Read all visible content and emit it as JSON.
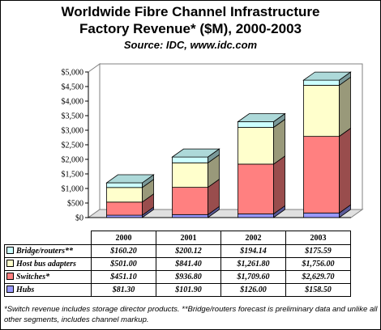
{
  "title_line1": "Worldwide Fibre Channel Infrastructure",
  "title_line2": "Factory Revenue* ($M), 2000-2003",
  "source": "Source: IDC, www.idc.com",
  "footnote": "*Switch revenue includes storage director products.  **Bridge/routers forecast is preliminary data and unlike all other segments, includes channel markup.",
  "chart_data": {
    "type": "bar",
    "stacked": true,
    "three_d": true,
    "categories": [
      "2000",
      "2001",
      "2002",
      "2003"
    ],
    "series": [
      {
        "name": "Hubs",
        "values": [
          81.3,
          101.9,
          126.0,
          158.5
        ],
        "labels": [
          "$81.30",
          "$101.90",
          "$126.00",
          "$158.50"
        ],
        "color": "#9999ff"
      },
      {
        "name": "Switches*",
        "values": [
          451.1,
          936.8,
          1709.6,
          2629.7
        ],
        "labels": [
          "$451.10",
          "$936.80",
          "$1,709.60",
          "$2,629.70"
        ],
        "color": "#ff8080"
      },
      {
        "name": "Host bus adapters",
        "values": [
          501.0,
          841.4,
          1261.8,
          1756.0
        ],
        "labels": [
          "$501.00",
          "$841.40",
          "$1,261.80",
          "$1,756.00"
        ],
        "color": "#ffffcc"
      },
      {
        "name": "Bridge/routers**",
        "values": [
          160.2,
          200.12,
          194.14,
          175.59
        ],
        "labels": [
          "$160.20",
          "$200.12",
          "$194.14",
          "$175.59"
        ],
        "color": "#ccffff"
      }
    ],
    "ylim": [
      0,
      5000
    ],
    "yticks": [
      "$0",
      "$500",
      "$1,000",
      "$1,500",
      "$2,000",
      "$2,500",
      "$3,000",
      "$3,500",
      "$4,000",
      "$4,500",
      "$5,000"
    ],
    "grid": false,
    "legend": "data-table"
  }
}
